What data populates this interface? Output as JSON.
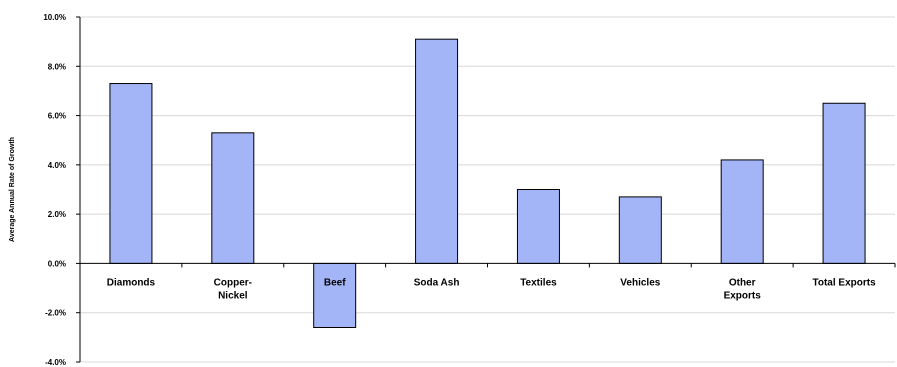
{
  "chart_data": {
    "type": "bar",
    "ylabel": "Average Annual Rate of Growth",
    "ylim": [
      -4.0,
      10.0
    ],
    "yticks": [
      "-4.0%",
      "-2.0%",
      "0.0%",
      "2.0%",
      "4.0%",
      "6.0%",
      "8.0%",
      "10.0%"
    ],
    "ytick_values": [
      -4,
      -2,
      0,
      2,
      4,
      6,
      8,
      10
    ],
    "categories": [
      [
        "Diamonds"
      ],
      [
        "Copper-",
        "Nickel"
      ],
      [
        "Beef"
      ],
      [
        "Soda Ash"
      ],
      [
        "Textiles"
      ],
      [
        "Vehicles"
      ],
      [
        "Other",
        "Exports"
      ],
      [
        "Total Exports"
      ]
    ],
    "values": [
      7.3,
      5.3,
      -2.6,
      9.1,
      3.0,
      2.7,
      4.2,
      6.5
    ],
    "grid": true,
    "bar_color": "#a3b5f7"
  }
}
